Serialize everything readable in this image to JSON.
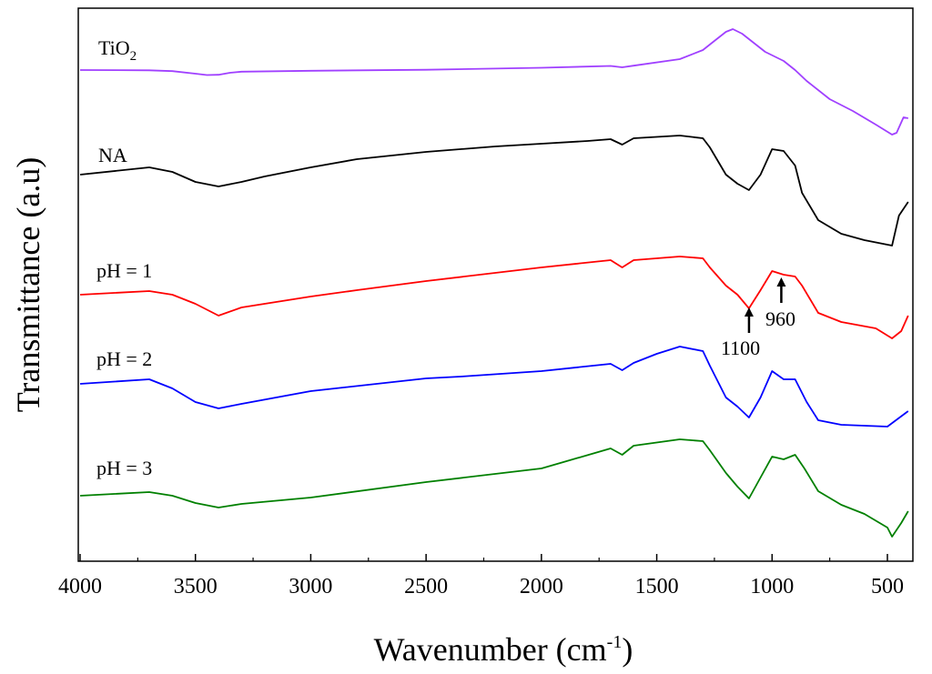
{
  "chart_data": {
    "type": "line",
    "xlabel": "Wavenumber (cm",
    "xlabel_sup": "-1",
    "xlabel_tail": ")",
    "ylabel": "Transmittance (a.u)",
    "xlim": [
      4000,
      400
    ],
    "x_reversed": true,
    "x_ticks": [
      4000,
      3500,
      3000,
      2500,
      2000,
      1500,
      1000,
      500
    ],
    "y_ticks_shown": false,
    "grid": false,
    "legend": "inline labels (left)",
    "series": [
      {
        "name": "TiO",
        "name_sub": "2",
        "color": "#a040ff",
        "points": [
          [
            4000,
            0.0
          ],
          [
            3700,
            -0.3
          ],
          [
            3600,
            -1.2
          ],
          [
            3500,
            -4.0
          ],
          [
            3450,
            -5.5
          ],
          [
            3400,
            -5.2
          ],
          [
            3350,
            -3.0
          ],
          [
            3300,
            -1.8
          ],
          [
            3000,
            -0.8
          ],
          [
            2500,
            0.3
          ],
          [
            2000,
            2.5
          ],
          [
            1700,
            4.5
          ],
          [
            1650,
            3.0
          ],
          [
            1600,
            4.8
          ],
          [
            1400,
            12.0
          ],
          [
            1300,
            22.0
          ],
          [
            1250,
            32.0
          ],
          [
            1200,
            42.0
          ],
          [
            1170,
            45.0
          ],
          [
            1130,
            40.0
          ],
          [
            1080,
            30.0
          ],
          [
            1030,
            20.0
          ],
          [
            950,
            10.0
          ],
          [
            900,
            0.0
          ],
          [
            850,
            -12.0
          ],
          [
            750,
            -32.0
          ],
          [
            650,
            -45.0
          ],
          [
            550,
            -60.0
          ],
          [
            480,
            -71.0
          ],
          [
            460,
            -69.0
          ],
          [
            430,
            -52.0
          ],
          [
            410,
            -53.0
          ]
        ]
      },
      {
        "name": "NA",
        "color": "#000000",
        "points": [
          [
            4000,
            0.0
          ],
          [
            3700,
            8.0
          ],
          [
            3600,
            3.0
          ],
          [
            3500,
            -8.0
          ],
          [
            3400,
            -13.0
          ],
          [
            3300,
            -8.0
          ],
          [
            3200,
            -2.0
          ],
          [
            3000,
            8.0
          ],
          [
            2800,
            17.0
          ],
          [
            2500,
            25.0
          ],
          [
            2200,
            31.0
          ],
          [
            2000,
            34.0
          ],
          [
            1800,
            37.0
          ],
          [
            1700,
            39.0
          ],
          [
            1650,
            33.0
          ],
          [
            1600,
            40.0
          ],
          [
            1400,
            43.0
          ],
          [
            1300,
            40.0
          ],
          [
            1270,
            30.0
          ],
          [
            1200,
            0.0
          ],
          [
            1150,
            -10.0
          ],
          [
            1100,
            -17.0
          ],
          [
            1050,
            0.0
          ],
          [
            1000,
            28.0
          ],
          [
            950,
            26.0
          ],
          [
            900,
            10.0
          ],
          [
            870,
            -20.0
          ],
          [
            800,
            -50.0
          ],
          [
            700,
            -65.0
          ],
          [
            600,
            -72.0
          ],
          [
            480,
            -78.0
          ],
          [
            450,
            -45.0
          ],
          [
            410,
            -30.0
          ]
        ]
      },
      {
        "name": "pH = 1",
        "color": "#ff0000",
        "points": [
          [
            4000,
            0.0
          ],
          [
            3700,
            4.0
          ],
          [
            3600,
            0.0
          ],
          [
            3500,
            -10.0
          ],
          [
            3400,
            -23.0
          ],
          [
            3300,
            -14.0
          ],
          [
            3200,
            -10.0
          ],
          [
            3000,
            -2.0
          ],
          [
            2800,
            5.0
          ],
          [
            2500,
            15.0
          ],
          [
            2000,
            30.0
          ],
          [
            1700,
            38.0
          ],
          [
            1650,
            30.0
          ],
          [
            1600,
            38.0
          ],
          [
            1400,
            42.0
          ],
          [
            1300,
            40.0
          ],
          [
            1270,
            30.0
          ],
          [
            1200,
            10.0
          ],
          [
            1150,
            0.0
          ],
          [
            1100,
            -15.0
          ],
          [
            1050,
            5.0
          ],
          [
            1000,
            26.0
          ],
          [
            950,
            22.0
          ],
          [
            900,
            20.0
          ],
          [
            870,
            10.0
          ],
          [
            800,
            -20.0
          ],
          [
            700,
            -30.0
          ],
          [
            550,
            -37.0
          ],
          [
            480,
            -48.0
          ],
          [
            440,
            -40.0
          ],
          [
            410,
            -23.0
          ]
        ]
      },
      {
        "name": "pH = 2",
        "color": "#0000ff",
        "points": [
          [
            4000,
            0.0
          ],
          [
            3700,
            5.0
          ],
          [
            3600,
            -5.0
          ],
          [
            3500,
            -20.0
          ],
          [
            3400,
            -27.0
          ],
          [
            3300,
            -22.0
          ],
          [
            3000,
            -8.0
          ],
          [
            2500,
            6.0
          ],
          [
            2350,
            8.0
          ],
          [
            2000,
            14.0
          ],
          [
            1700,
            22.0
          ],
          [
            1650,
            15.0
          ],
          [
            1600,
            23.0
          ],
          [
            1500,
            33.0
          ],
          [
            1400,
            41.0
          ],
          [
            1300,
            36.0
          ],
          [
            1270,
            20.0
          ],
          [
            1200,
            -15.0
          ],
          [
            1150,
            -25.0
          ],
          [
            1100,
            -37.0
          ],
          [
            1050,
            -15.0
          ],
          [
            1000,
            14.0
          ],
          [
            950,
            5.0
          ],
          [
            900,
            5.0
          ],
          [
            850,
            -20.0
          ],
          [
            800,
            -40.0
          ],
          [
            700,
            -45.0
          ],
          [
            500,
            -47.0
          ],
          [
            410,
            -30.0
          ]
        ]
      },
      {
        "name": "pH = 3",
        "color": "#008000",
        "points": [
          [
            4000,
            0.0
          ],
          [
            3700,
            4.0
          ],
          [
            3600,
            0.0
          ],
          [
            3500,
            -8.0
          ],
          [
            3400,
            -13.0
          ],
          [
            3300,
            -9.0
          ],
          [
            3000,
            -2.0
          ],
          [
            2500,
            15.0
          ],
          [
            2000,
            30.0
          ],
          [
            1700,
            52.0
          ],
          [
            1650,
            45.0
          ],
          [
            1600,
            55.0
          ],
          [
            1400,
            62.0
          ],
          [
            1300,
            60.0
          ],
          [
            1270,
            50.0
          ],
          [
            1200,
            25.0
          ],
          [
            1150,
            10.0
          ],
          [
            1100,
            -3.0
          ],
          [
            1050,
            20.0
          ],
          [
            1000,
            43.0
          ],
          [
            950,
            40.0
          ],
          [
            900,
            45.0
          ],
          [
            860,
            30.0
          ],
          [
            800,
            5.0
          ],
          [
            700,
            -10.0
          ],
          [
            600,
            -20.0
          ],
          [
            500,
            -35.0
          ],
          [
            480,
            -45.0
          ],
          [
            440,
            -30.0
          ],
          [
            410,
            -17.0
          ]
        ]
      }
    ],
    "annotations": [
      {
        "text": "1100",
        "x": 1100
      },
      {
        "text": "960",
        "x": 960
      }
    ]
  }
}
